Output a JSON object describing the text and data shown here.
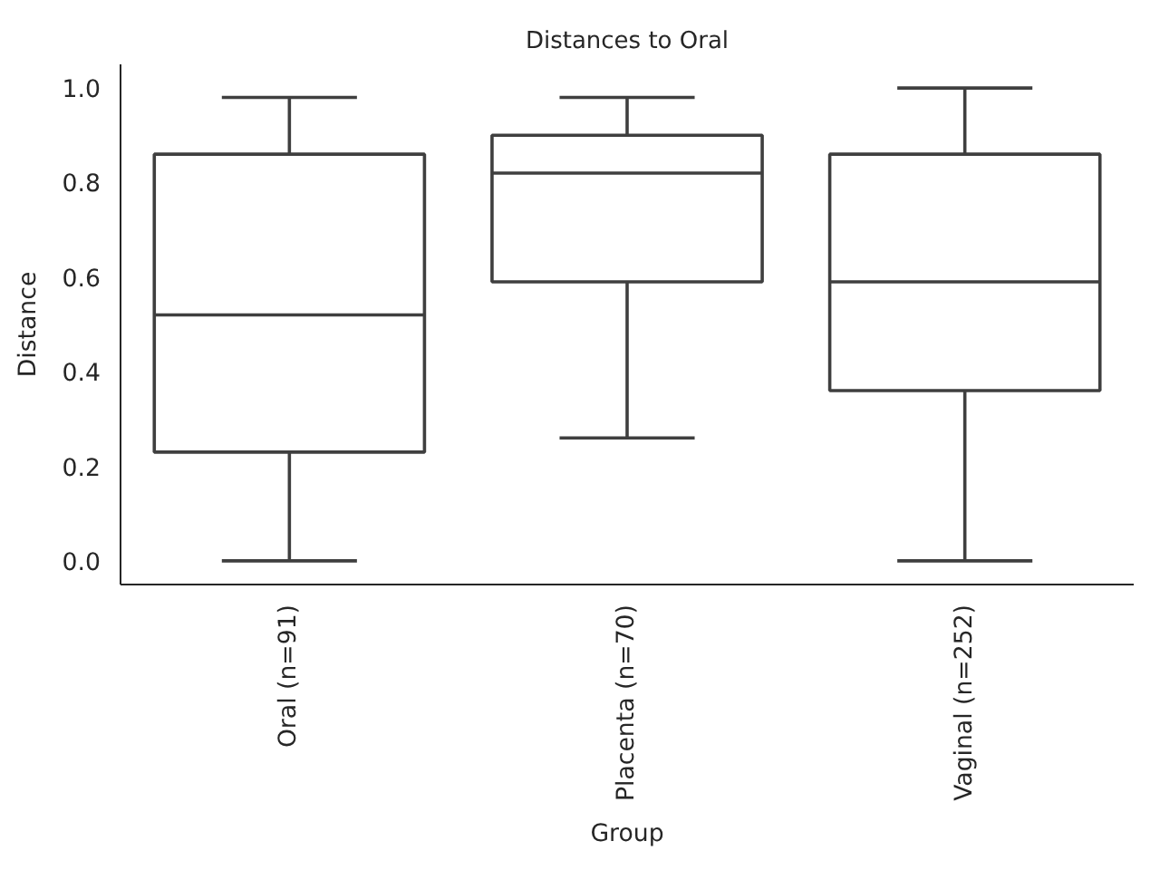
{
  "chart_data": {
    "type": "box",
    "title": "Distances to Oral",
    "xlabel": "Group",
    "ylabel": "Distance",
    "categories": [
      "Oral (n=91)",
      "Placenta (n=70)",
      "Vaginal (n=252)"
    ],
    "color": "#ffffff",
    "boxes": [
      {
        "low": 0.0,
        "q1": 0.23,
        "median": 0.52,
        "q3": 0.86,
        "high": 0.98
      },
      {
        "low": 0.26,
        "q1": 0.59,
        "median": 0.82,
        "q3": 0.9,
        "high": 0.98
      },
      {
        "low": 0.0,
        "q1": 0.36,
        "median": 0.59,
        "q3": 0.86,
        "high": 1.0
      }
    ],
    "ylim": [
      -0.05,
      1.05
    ],
    "yticks": [
      {
        "value": 0,
        "label": "0.0"
      },
      {
        "value": 0.2,
        "label": "0.2"
      },
      {
        "value": 0.4,
        "label": "0.4"
      },
      {
        "value": 0.6,
        "label": "0.6"
      },
      {
        "value": 0.8,
        "label": "0.8"
      },
      {
        "value": 1,
        "label": "1.0"
      }
    ],
    "grid": false
  }
}
